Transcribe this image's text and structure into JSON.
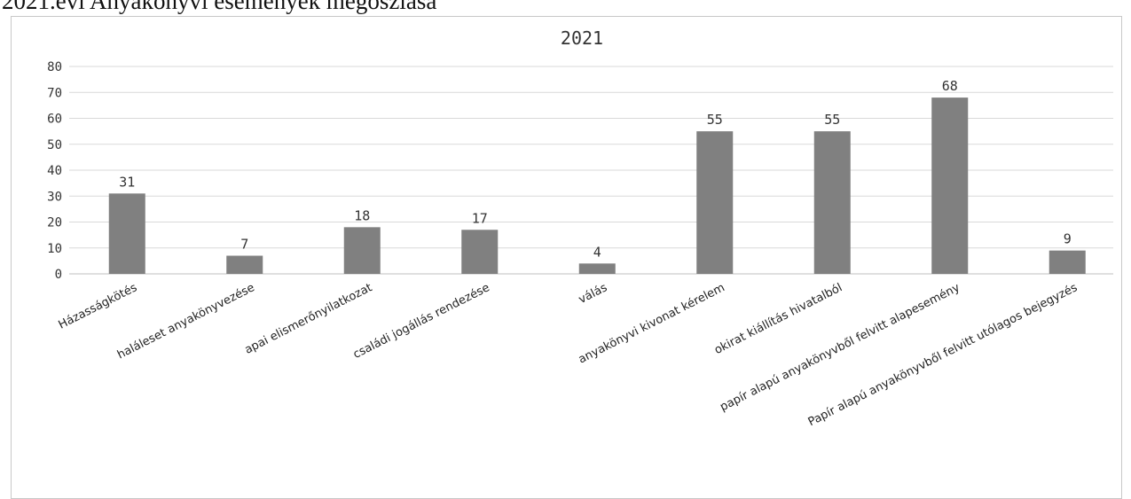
{
  "document": {
    "heading": "2021.évi Anyakönyvi események megoszlása"
  },
  "colors": {
    "bar": "#808080",
    "grid": "#d9d9d9",
    "text": "#333333"
  },
  "chart_data": {
    "type": "bar",
    "title": "2021",
    "categories": [
      "Házasságkötés",
      "haláleset anyakönyvezése",
      "apai elismerőnyilatkozat",
      "családi jogállás rendezése",
      "válás",
      "anyakönyvi kivonat kérelem",
      "okirat kiállítás hivatalból",
      "papír alapú anyakönyvből felvitt alapesemény",
      "Papír alapú anyakönyvből felvitt utólagos bejegyzés"
    ],
    "values": [
      31,
      7,
      18,
      17,
      4,
      55,
      55,
      68,
      9
    ],
    "ylim": [
      0,
      80
    ],
    "yticks": [
      0,
      10,
      20,
      30,
      40,
      50,
      60,
      70,
      80
    ],
    "grid": true,
    "legend": "none"
  }
}
